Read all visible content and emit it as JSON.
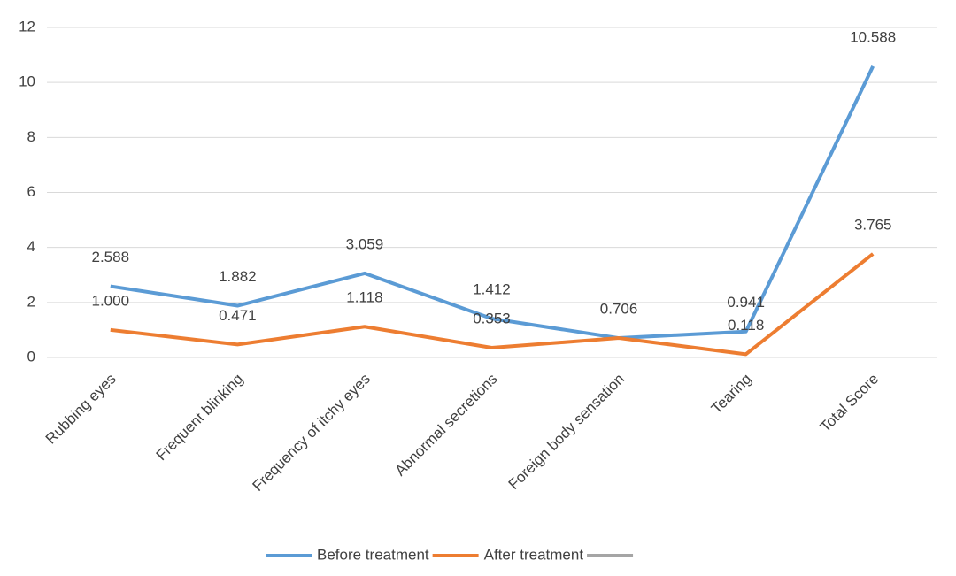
{
  "chart_data": {
    "type": "line",
    "categories": [
      "Rubbing eyes",
      "Frequent blinking",
      "Frequency of itchy eyes",
      "Abnormal secretions",
      "Foreign body sensation",
      "Tearing",
      "Total Score"
    ],
    "series": [
      {
        "name": "Before treatment",
        "color": "#5b9bd5",
        "values": [
          2.588,
          1.882,
          3.059,
          1.412,
          0.706,
          0.941,
          10.588
        ],
        "value_labels": [
          "2.588",
          "1.882",
          "3.059",
          "1.412",
          "0.706",
          "0.941",
          "10.588"
        ]
      },
      {
        "name": "After treatment",
        "color": "#ed7d31",
        "values": [
          1.0,
          0.471,
          1.118,
          0.353,
          0.706,
          0.118,
          3.765
        ],
        "value_labels": [
          "1.000",
          "0.471",
          "1.118",
          "0.353",
          null,
          "0.118",
          "3.765"
        ]
      },
      {
        "name": null,
        "color": "#a5a5a5",
        "values": [
          null,
          null,
          null,
          null,
          null,
          null,
          null
        ]
      }
    ],
    "ylim": [
      0,
      12
    ],
    "yticks": [
      0,
      2,
      4,
      6,
      8,
      10,
      12
    ],
    "grid": true,
    "legend": "bottom"
  }
}
